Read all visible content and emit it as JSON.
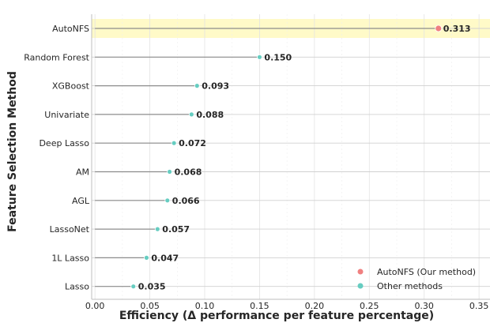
{
  "chart_data": {
    "type": "lollipop",
    "categories": [
      "AutoNFS",
      "Random Forest",
      "XGBoost",
      "Univariate",
      "Deep Lasso",
      "AM",
      "AGL",
      "LassoNet",
      "1L Lasso",
      "Lasso"
    ],
    "values": [
      0.313,
      0.15,
      0.093,
      0.088,
      0.072,
      0.068,
      0.066,
      0.057,
      0.047,
      0.035
    ],
    "value_labels": [
      "0.313",
      "0.150",
      "0.093",
      "0.088",
      "0.072",
      "0.068",
      "0.066",
      "0.057",
      "0.047",
      "0.035"
    ],
    "highlighted_category": "AutoNFS",
    "xlabel": "Efficiency (Δ performance per feature percentage)",
    "ylabel": "Feature Selection Method",
    "xlim": [
      -0.003,
      0.36
    ],
    "xticks": [
      0.0,
      0.05,
      0.1,
      0.15,
      0.2,
      0.25,
      0.3,
      0.35
    ],
    "xtick_labels": [
      "0.00",
      "0.05",
      "0.10",
      "0.15",
      "0.20",
      "0.25",
      "0.30",
      "0.35"
    ],
    "grid": true,
    "legend": {
      "placement": "bottom-right",
      "entries": [
        {
          "label": "AutoNFS (Our method)",
          "color": "#f08080"
        },
        {
          "label": "Other methods",
          "color": "#66cdc1"
        }
      ]
    },
    "colors": {
      "highlight_marker": "#f08080",
      "other_marker": "#66cdc1",
      "highlight_band": "#fffac8",
      "stem": "#8c8c8c"
    }
  }
}
